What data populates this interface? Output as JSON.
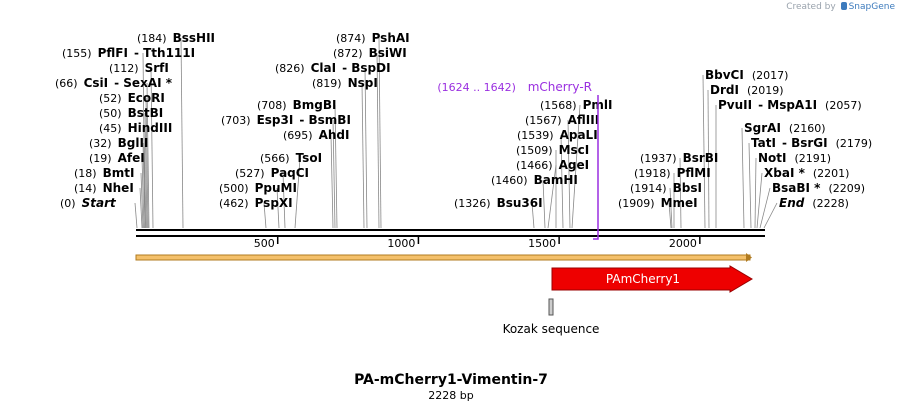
{
  "credit": {
    "prefix": "Created by",
    "brand": "SnapGene"
  },
  "map": {
    "title": "PA-mCherry1-Vimentin-7",
    "length_label": "2228 bp",
    "length_bp": 2228,
    "ticks": [
      500,
      1000,
      1500,
      2000
    ],
    "colors": {
      "primer": "#9a2fe0",
      "feature_red": "#ee0000",
      "orf": "#f4c06a",
      "orf_border": "#b07b20"
    },
    "sites": [
      {
        "name": "PflFI",
        "pos": "(155)",
        "extra": "Tth111I"
      },
      {
        "name": "BssHII",
        "pos": "(184)"
      },
      {
        "name": "SrfI",
        "pos": "(112)"
      },
      {
        "name": "CsiI",
        "pos": "(66)",
        "extra": "SexAI *"
      },
      {
        "name": "EcoRI",
        "pos": "(52)"
      },
      {
        "name": "BstBI",
        "pos": "(50)"
      },
      {
        "name": "HindIII",
        "pos": "(45)"
      },
      {
        "name": "BglII",
        "pos": "(32)"
      },
      {
        "name": "AfeI",
        "pos": "(19)"
      },
      {
        "name": "BmtI",
        "pos": "(18)"
      },
      {
        "name": "NheI",
        "pos": "(14)"
      },
      {
        "name": "Start",
        "pos": "(0)"
      },
      {
        "name": "PspXI",
        "pos": "(462)"
      },
      {
        "name": "PpuMI",
        "pos": "(500)"
      },
      {
        "name": "PaqCI",
        "pos": "(527)"
      },
      {
        "name": "TsoI",
        "pos": "(566)"
      },
      {
        "name": "AhdI",
        "pos": "(695)"
      },
      {
        "name": "Esp3I",
        "pos": "(703)",
        "extra": "BsmBI"
      },
      {
        "name": "BmgBI",
        "pos": "(708)"
      },
      {
        "name": "NspI",
        "pos": "(819)"
      },
      {
        "name": "ClaI",
        "pos": "(826)",
        "extra": "BspDI"
      },
      {
        "name": "BsiWI",
        "pos": "(872)"
      },
      {
        "name": "PshAI",
        "pos": "(874)"
      },
      {
        "name": "Bsu36I",
        "pos": "(1326)"
      },
      {
        "name": "BamHI",
        "pos": "(1460)"
      },
      {
        "name": "AgeI",
        "pos": "(1466)"
      },
      {
        "name": "MscI",
        "pos": "(1509)"
      },
      {
        "name": "ApaLI",
        "pos": "(1539)"
      },
      {
        "name": "AflIII",
        "pos": "(1567)"
      },
      {
        "name": "PmlI",
        "pos": "(1568)"
      },
      {
        "name": "MmeI",
        "pos": "(1909)"
      },
      {
        "name": "BbsI",
        "pos": "(1914)"
      },
      {
        "name": "PflMI",
        "pos": "(1918)"
      },
      {
        "name": "BsrBI",
        "pos": "(1937)"
      },
      {
        "name": "BbvCI",
        "pos": "(2017)"
      },
      {
        "name": "DrdI",
        "pos": "(2019)"
      },
      {
        "name": "PvuII",
        "pos": "(2057)",
        "extra": "MspA1I"
      },
      {
        "name": "SgrAI",
        "pos": "(2160)"
      },
      {
        "name": "TatI",
        "pos": "(2179)",
        "extra": "BsrGI"
      },
      {
        "name": "NotI",
        "pos": "(2191)"
      },
      {
        "name": "XbaI *",
        "pos": "(2201)"
      },
      {
        "name": "BsaBI *",
        "pos": "(2209)"
      },
      {
        "name": "End",
        "pos": "(2228)"
      }
    ],
    "primer": {
      "name": "mCherry-R",
      "range": "(1624 .. 1642)"
    },
    "features": [
      {
        "name": "PAmCherry1",
        "start": 1490,
        "end": 2216
      },
      {
        "name": "Kozak sequence",
        "start": 1480,
        "end": 1489
      }
    ]
  }
}
